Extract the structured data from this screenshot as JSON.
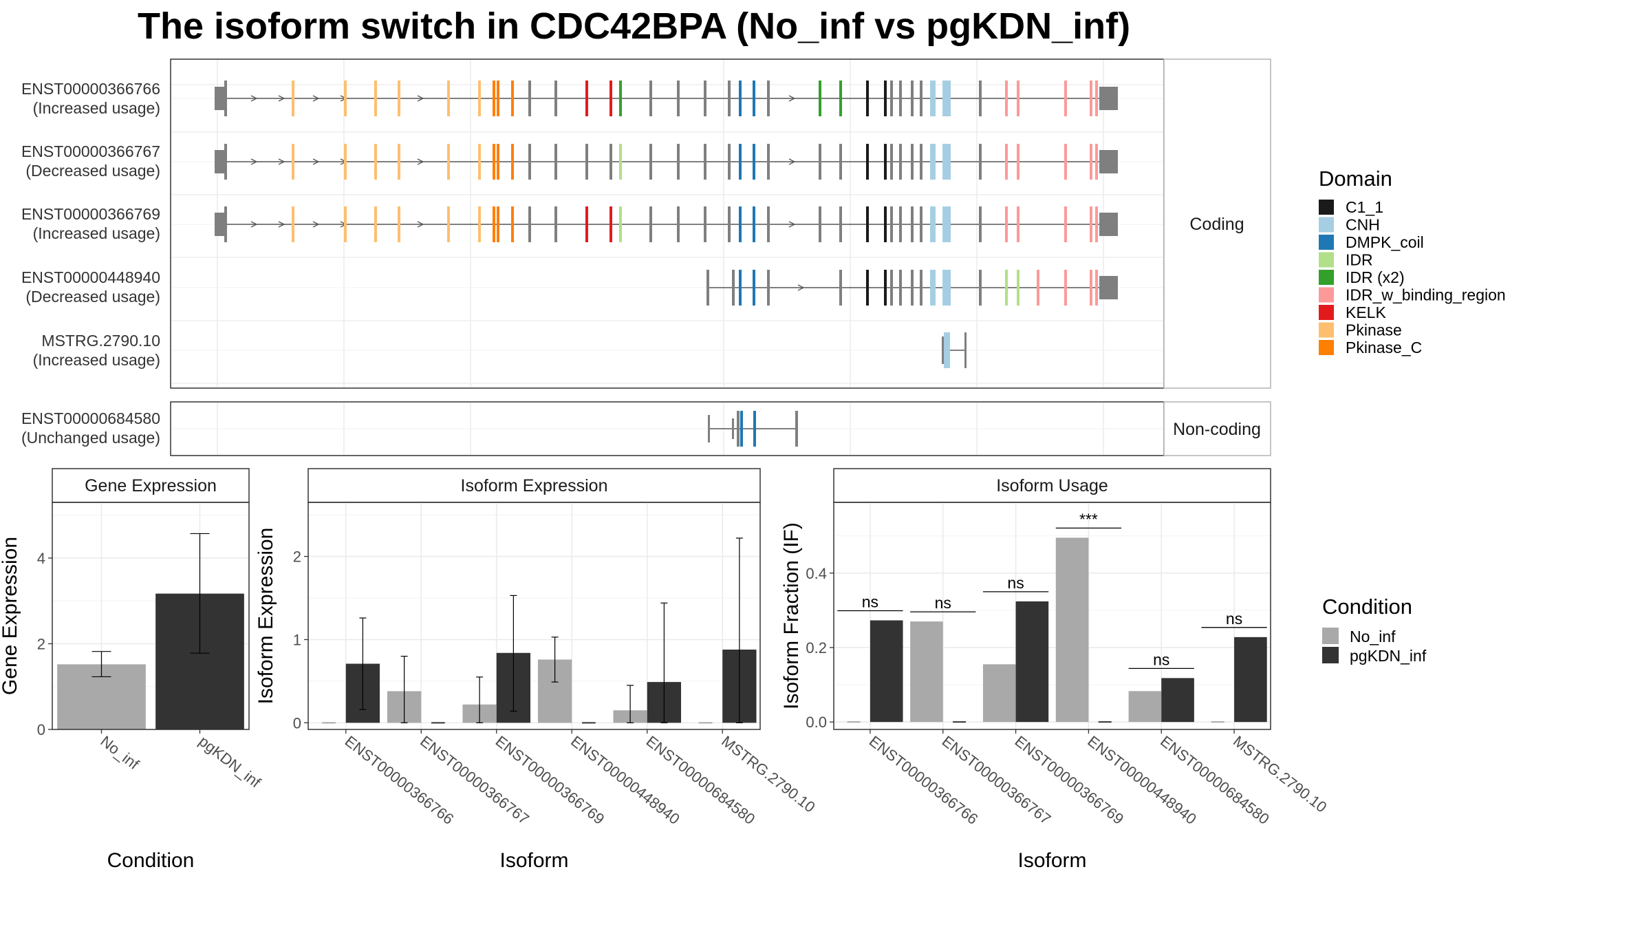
{
  "title": "The isoform switch in CDC42BPA (No_inf vs pgKDN_inf)",
  "colors": {
    "No_inf": "#a9a9a9",
    "pgKDN_inf": "#333333",
    "C1_1": "#1a1a1a",
    "CNH": "#a6cee3",
    "DMPK_coil": "#1f78b4",
    "IDR": "#b2df8a",
    "IDR (x2)": "#33a02c",
    "IDR_w_binding_region": "#fb9a99",
    "KELK": "#e31a1c",
    "Pkinase": "#fdbf6f",
    "Pkinase_C": "#ff7f00",
    "no_domain": "#7f7f7f"
  },
  "structure": {
    "coding_label": "Coding",
    "noncoding_label": "Non-coding",
    "coding_rows": [
      {
        "id": "ENST00000366766",
        "usage": "(Increased usage)"
      },
      {
        "id": "ENST00000366767",
        "usage": "(Decreased usage)"
      },
      {
        "id": "ENST00000366769",
        "usage": "(Increased usage)"
      },
      {
        "id": "ENST00000448940",
        "usage": "(Decreased usage)"
      },
      {
        "id": "MSTRG.2790.10",
        "usage": "(Increased usage)"
      }
    ],
    "noncoding_rows": [
      {
        "id": "ENST00000684580",
        "usage": "(Unchanged usage)"
      }
    ]
  },
  "domain_legend": {
    "title": "Domain",
    "items": [
      "C1_1",
      "CNH",
      "DMPK_coil",
      "IDR",
      "IDR (x2)",
      "IDR_w_binding_region",
      "KELK",
      "Pkinase",
      "Pkinase_C"
    ]
  },
  "condition_legend": {
    "title": "Condition",
    "items": [
      "No_inf",
      "pgKDN_inf"
    ]
  },
  "chart_data": [
    {
      "type": "bar",
      "panel": "Gene Expression",
      "categories": [
        "No_inf",
        "pgKDN_inf"
      ],
      "values": [
        1.52,
        3.17
      ],
      "error_low": [
        1.23,
        1.78
      ],
      "error_high": [
        1.82,
        4.57
      ],
      "xlabel": "Condition",
      "ylabel": "Gene Expression",
      "ylim": [
        0,
        5.3
      ],
      "yticks": [
        0,
        2,
        4
      ],
      "grid": true
    },
    {
      "type": "bar",
      "panel": "Isoform Expression",
      "categories": [
        "ENST00000366766",
        "ENST00000366767",
        "ENST00000366769",
        "ENST00000448940",
        "ENST00000684580",
        "MSTRG.2790.10"
      ],
      "series": [
        {
          "name": "No_inf",
          "values": [
            0.0,
            0.38,
            0.22,
            0.76,
            0.15,
            0.0
          ],
          "error_low": [
            0.0,
            0.0,
            0.0,
            0.49,
            0.0,
            0.0
          ],
          "error_high": [
            0.0,
            0.8,
            0.55,
            1.03,
            0.45,
            0.0
          ]
        },
        {
          "name": "pgKDN_inf",
          "values": [
            0.71,
            0.0,
            0.84,
            0.0,
            0.49,
            0.88
          ],
          "error_low": [
            0.16,
            0.0,
            0.14,
            0.0,
            0.0,
            0.0
          ],
          "error_high": [
            1.26,
            0.0,
            1.53,
            0.0,
            1.44,
            2.22
          ]
        }
      ],
      "xlabel": "Isoform",
      "ylabel": "Isoform Expression",
      "ylim": [
        -0.08,
        2.65
      ],
      "yticks": [
        0,
        1,
        2
      ],
      "grid": true
    },
    {
      "type": "bar",
      "panel": "Isoform Usage",
      "categories": [
        "ENST00000366766",
        "ENST00000366767",
        "ENST00000366769",
        "ENST00000448940",
        "ENST00000684580",
        "MSTRG.2790.10"
      ],
      "series": [
        {
          "name": "No_inf",
          "values": [
            0.0,
            0.27,
            0.155,
            0.495,
            0.083,
            0.0
          ]
        },
        {
          "name": "pgKDN_inf",
          "values": [
            0.273,
            0.0,
            0.324,
            0.0,
            0.118,
            0.228
          ]
        }
      ],
      "significance": [
        "ns",
        "ns",
        "ns",
        "***",
        "ns",
        "ns"
      ],
      "xlabel": "Isoform",
      "ylabel": "Isoform Fraction (IF)",
      "ylim": [
        -0.02,
        0.59
      ],
      "yticks": [
        0.0,
        0.2,
        0.4
      ],
      "grid": true
    }
  ]
}
